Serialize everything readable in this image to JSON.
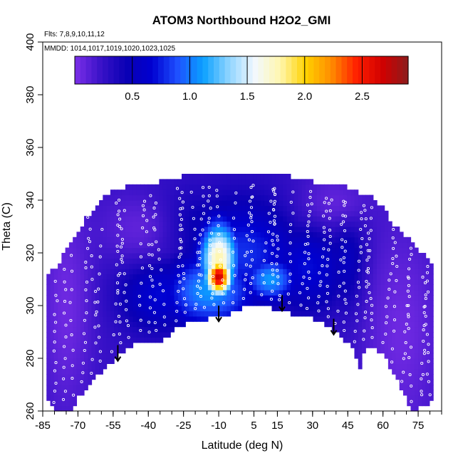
{
  "chart_data": {
    "type": "heatmap",
    "title": "ATOM3 Northbound H2O2_GMI",
    "annotations": {
      "flights": "Flts: 7,8,9,10,11,12",
      "dates": "MMDD: 1014,1017,1019,1020,1023,1025"
    },
    "xlabel": "Latitude (deg N)",
    "ylabel": "Theta (C)",
    "xlim": [
      -85,
      85
    ],
    "ylim": [
      260,
      400
    ],
    "x_ticks": [
      -85,
      -70,
      -55,
      -40,
      -25,
      -10,
      5,
      15,
      30,
      45,
      60,
      75
    ],
    "y_ticks": [
      260,
      280,
      300,
      320,
      340,
      360,
      380,
      400
    ],
    "colorbar": {
      "range": [
        0,
        2.9
      ],
      "ticks": [
        0.5,
        1.0,
        1.5,
        2.0,
        2.5
      ],
      "tick_labels": [
        "0.5",
        "1.0",
        "1.5",
        "2.0",
        "2.5"
      ],
      "colors": [
        "#7c2fe8",
        "#3a12c8",
        "#0a00b4",
        "#0000d0",
        "#1e50ff",
        "#0aa0ff",
        "#8ed4ff",
        "#f2f8ff",
        "#fff7b0",
        "#ffd200",
        "#ff8c00",
        "#ff1e00",
        "#d00000",
        "#8c1c1c"
      ]
    },
    "domain_top": [
      [
        -82,
        312
      ],
      [
        -78,
        316
      ],
      [
        -74,
        324
      ],
      [
        -70,
        328
      ],
      [
        -66,
        334
      ],
      [
        -62,
        338
      ],
      [
        -58,
        342
      ],
      [
        -54,
        344
      ],
      [
        -50,
        345
      ],
      [
        -45,
        345
      ],
      [
        -40,
        346
      ],
      [
        -35,
        347
      ],
      [
        -30,
        348
      ],
      [
        -25,
        349
      ],
      [
        -20,
        349
      ],
      [
        -15,
        349
      ],
      [
        -10,
        350
      ],
      [
        -5,
        350
      ],
      [
        0,
        350
      ],
      [
        5,
        350
      ],
      [
        10,
        349
      ],
      [
        15,
        349
      ],
      [
        20,
        349
      ],
      [
        25,
        348
      ],
      [
        30,
        347
      ],
      [
        35,
        346
      ],
      [
        40,
        346
      ],
      [
        45,
        345
      ],
      [
        50,
        343
      ],
      [
        55,
        342
      ],
      [
        60,
        337
      ],
      [
        65,
        330
      ],
      [
        70,
        326
      ],
      [
        75,
        321
      ],
      [
        79,
        318
      ],
      [
        82,
        316
      ]
    ],
    "domain_bottom": [
      [
        82,
        264
      ],
      [
        78,
        262
      ],
      [
        72,
        260
      ],
      [
        66,
        272
      ],
      [
        60,
        282
      ],
      [
        55,
        284
      ],
      [
        52,
        283
      ],
      [
        50,
        275
      ],
      [
        48,
        283
      ],
      [
        45,
        286
      ],
      [
        40,
        290
      ],
      [
        35,
        293
      ],
      [
        30,
        295
      ],
      [
        25,
        296
      ],
      [
        20,
        297
      ],
      [
        15,
        298
      ],
      [
        10,
        300
      ],
      [
        5,
        301
      ],
      [
        0,
        299
      ],
      [
        -5,
        297
      ],
      [
        -10,
        296
      ],
      [
        -15,
        295
      ],
      [
        -20,
        294
      ],
      [
        -25,
        293
      ],
      [
        -30,
        290
      ],
      [
        -35,
        286
      ],
      [
        -40,
        285
      ],
      [
        -45,
        286
      ],
      [
        -50,
        283
      ],
      [
        -55,
        279
      ],
      [
        -60,
        275
      ],
      [
        -65,
        270
      ],
      [
        -70,
        265
      ],
      [
        -73,
        260
      ],
      [
        -80,
        260
      ],
      [
        -83,
        264
      ]
    ],
    "field_background": 0.25,
    "features": [
      {
        "lat": -10,
        "theta": 311,
        "value": 2.7,
        "spread_lat": 4,
        "spread_theta": 5
      },
      {
        "lat": -10,
        "theta": 318,
        "value": 1.8,
        "spread_lat": 6,
        "spread_theta": 10
      },
      {
        "lat": -14,
        "theta": 306,
        "value": 1.1,
        "spread_lat": 14,
        "spread_theta": 10
      },
      {
        "lat": 12,
        "theta": 310,
        "value": 1.1,
        "spread_lat": 8,
        "spread_theta": 6
      },
      {
        "lat": 0,
        "theta": 320,
        "value": 0.8,
        "spread_lat": 18,
        "spread_theta": 14
      },
      {
        "lat": 28,
        "theta": 315,
        "value": 0.7,
        "spread_lat": 12,
        "spread_theta": 12
      },
      {
        "lat": -35,
        "theta": 305,
        "value": 0.7,
        "spread_lat": 12,
        "spread_theta": 10
      },
      {
        "lat": 45,
        "theta": 318,
        "value": 0.6,
        "spread_lat": 6,
        "spread_theta": 14
      },
      {
        "lat": -20,
        "theta": 330,
        "value": 0.5,
        "spread_lat": 15,
        "spread_theta": 10
      }
    ],
    "low_regions": [
      {
        "lat": -75,
        "theta": 300,
        "value": 0.05,
        "spread_lat": 8,
        "spread_theta": 30
      },
      {
        "lat": 68,
        "theta": 290,
        "value": 0.05,
        "spread_lat": 12,
        "spread_theta": 30
      },
      {
        "lat": -45,
        "theta": 330,
        "value": 0.1,
        "spread_lat": 12,
        "spread_theta": 10
      },
      {
        "lat": 40,
        "theta": 340,
        "value": 0.1,
        "spread_lat": 12,
        "spread_theta": 8
      }
    ],
    "tropopause_arrows": [
      {
        "lat": -53,
        "theta_top": 285,
        "theta_bottom": 279
      },
      {
        "lat": -10,
        "theta_top": 300,
        "theta_bottom": 294
      },
      {
        "lat": 17,
        "theta_top": 304,
        "theta_bottom": 298
      },
      {
        "lat": 39,
        "theta_top": 295,
        "theta_bottom": 289
      }
    ],
    "flight_profile_lats": [
      -80,
      -76,
      -72,
      -68,
      -64,
      -60,
      -56,
      -52,
      -48,
      -44,
      -40,
      -36,
      -32,
      -28,
      -24,
      -20,
      -16,
      -12,
      -8,
      -4,
      0,
      4,
      8,
      12,
      16,
      20,
      24,
      28,
      32,
      36,
      40,
      44,
      48,
      52,
      56,
      60,
      64,
      68,
      72,
      76,
      80
    ]
  }
}
